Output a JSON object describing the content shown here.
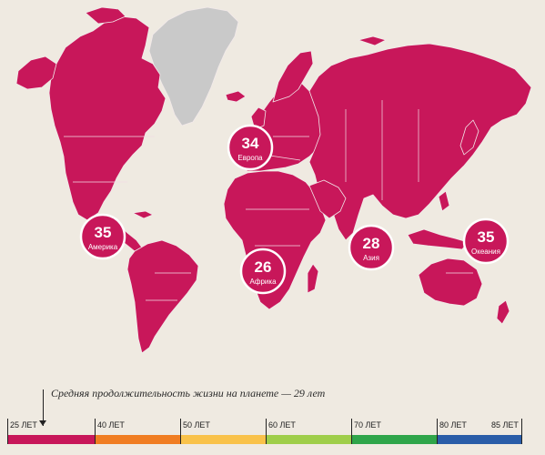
{
  "map": {
    "land_color": "#c8175a",
    "no_data_color": "#c9c9c9",
    "background_color": "#efeae1"
  },
  "regions": [
    {
      "value": "34",
      "label": "Европа"
    },
    {
      "value": "35",
      "label": "Америка"
    },
    {
      "value": "26",
      "label": "Африка"
    },
    {
      "value": "28",
      "label": "Азия"
    },
    {
      "value": "35",
      "label": "Океания"
    }
  ],
  "caption": "Средняя продолжительность жизни на планете — 29 лет",
  "world_average": 29,
  "scale": {
    "ticks": [
      "25 ЛЕТ",
      "40 ЛЕТ",
      "50 ЛЕТ",
      "60 ЛЕТ",
      "70 ЛЕТ",
      "80 ЛЕТ",
      "85 ЛЕТ"
    ],
    "segment_colors": [
      "#c8175a",
      "#f07d22",
      "#f9c24a",
      "#9fce4a",
      "#2fa54a",
      "#2a5da8"
    ]
  }
}
